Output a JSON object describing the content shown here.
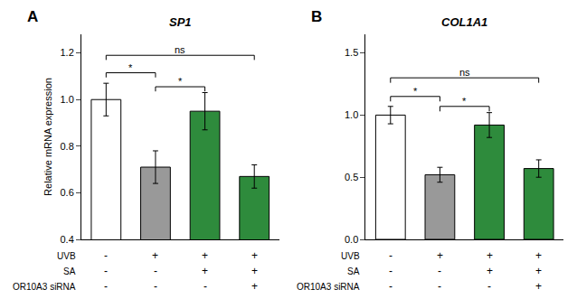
{
  "chart_data": [
    {
      "type": "bar",
      "title": "SP1",
      "panel_label": "A",
      "ylabel": "Relative mRNA expression",
      "categories": [
        null,
        null,
        null,
        null
      ],
      "values": [
        1.0,
        0.71,
        0.95,
        0.67
      ],
      "errors": [
        0.07,
        0.07,
        0.08,
        0.05
      ],
      "colors": [
        "white",
        "#999999",
        "#2e8b3c",
        "#2e8b3c"
      ],
      "ylim": [
        0.4,
        1.28
      ],
      "yticks": [
        0.4,
        0.6,
        0.8,
        {
          "value": 1.0,
          "label": "1.0"
        },
        1.2
      ],
      "grid": false,
      "significance": [
        {
          "x1": 0,
          "x2": 1,
          "y": 1.115,
          "tick": 0.02,
          "label": "*"
        },
        {
          "x1": 1,
          "x2": 2,
          "y": 1.055,
          "tick": 0.02,
          "label": "*"
        },
        {
          "x1": 0,
          "x2": 3,
          "y": 1.19,
          "tick": 0.02,
          "label": "ns"
        }
      ],
      "sign_rows": [
        {
          "label": "UVB",
          "signs": [
            "-",
            "+",
            "+",
            "+"
          ]
        },
        {
          "label": "SA",
          "signs": [
            "-",
            "-",
            "+",
            "+"
          ]
        },
        {
          "label": "OR10A3 siRNA",
          "signs": [
            "-",
            "-",
            "-",
            "+"
          ]
        }
      ]
    },
    {
      "type": "bar",
      "title": "COL1A1",
      "panel_label": "B",
      "categories": [
        null,
        null,
        null,
        null
      ],
      "values": [
        1.0,
        0.52,
        0.92,
        0.57
      ],
      "errors": [
        0.07,
        0.06,
        0.1,
        0.07
      ],
      "colors": [
        "white",
        "#999999",
        "#2e8b3c",
        "#2e8b3c"
      ],
      "ylim": [
        0.0,
        1.65
      ],
      "yticks": [
        {
          "value": 0,
          "label": "0.0"
        },
        0.5,
        {
          "value": 1,
          "label": "1.0"
        },
        1.5
      ],
      "grid": false,
      "significance": [
        {
          "x1": 0,
          "x2": 1,
          "y": 1.15,
          "tick": 0.04,
          "label": "*"
        },
        {
          "x1": 1,
          "x2": 2,
          "y": 1.07,
          "tick": 0.04,
          "label": "*"
        },
        {
          "x1": 0,
          "x2": 3,
          "y": 1.3,
          "tick": 0.04,
          "label": "ns"
        }
      ],
      "sign_rows": [
        {
          "label": "UVB",
          "signs": [
            "-",
            "+",
            "+",
            "+"
          ]
        },
        {
          "label": "SA",
          "signs": [
            "-",
            "-",
            "+",
            "+"
          ]
        },
        {
          "label": "OR10A3 siRNA",
          "signs": [
            "-",
            "-",
            "-",
            "+"
          ]
        }
      ]
    }
  ]
}
